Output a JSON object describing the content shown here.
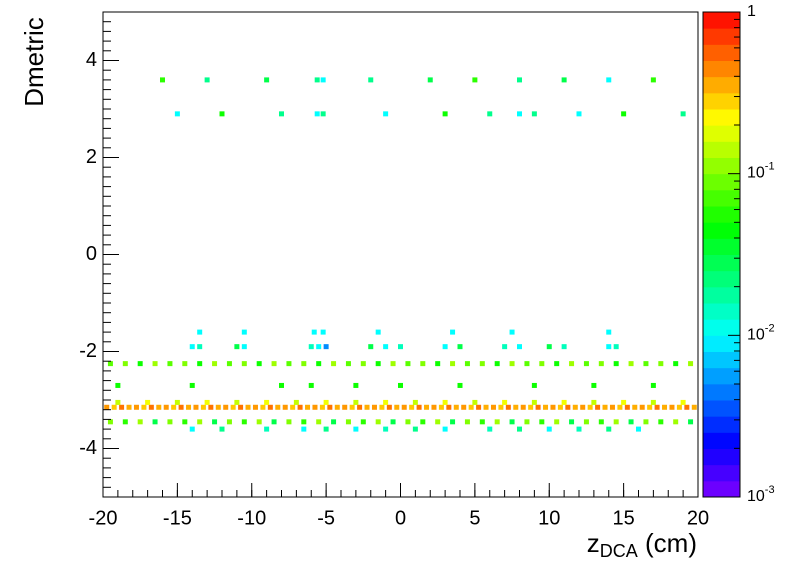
{
  "chart_data": {
    "type": "heatmap2d",
    "ylabel": "Dmetric",
    "xlabel": {
      "main": "z",
      "sub": "DCA",
      "rest": " (cm)"
    },
    "xlim": [
      -20,
      20
    ],
    "xticks": [
      -20,
      -15,
      -10,
      -5,
      0,
      5,
      10,
      15,
      20
    ],
    "ylim": [
      -5,
      5
    ],
    "yticks": [
      -4,
      -2,
      0,
      2,
      4
    ],
    "zlim": [
      0.001,
      1
    ],
    "zlog": true,
    "zticks": [
      1,
      {
        "value": 0.1,
        "label": "10",
        "sup": "-1"
      },
      {
        "value": 0.01,
        "label": "10",
        "sup": "-2"
      },
      {
        "value": 0.001,
        "label": "10",
        "sup": "-3"
      }
    ],
    "rows": [
      {
        "y": -3.15,
        "x": [
          -19.75,
          -19.25,
          -18.75,
          -18.25,
          -17.75,
          -17.25,
          -16.75,
          -16.25,
          -15.75,
          -15.25,
          -14.75,
          -14.25,
          -13.75,
          -13.25,
          -12.75,
          -12.25,
          -11.75,
          -11.25,
          -10.75,
          -10.25,
          -9.75,
          -9.25,
          -8.75,
          -8.25,
          -7.75,
          -7.25,
          -6.75,
          -6.25,
          -5.75,
          -5.25,
          -4.75,
          -4.25,
          -3.75,
          -3.25,
          -2.75,
          -2.25,
          -1.75,
          -1.25,
          -0.75,
          -0.25,
          0.25,
          0.75,
          1.25,
          1.75,
          2.25,
          2.75,
          3.25,
          3.75,
          4.25,
          4.75,
          5.25,
          5.75,
          6.25,
          6.75,
          7.25,
          7.75,
          8.25,
          8.75,
          9.25,
          9.75,
          10.25,
          10.75,
          11.25,
          11.75,
          12.25,
          12.75,
          13.25,
          13.75,
          14.25,
          14.75,
          15.25,
          15.75,
          16.25,
          16.75,
          17.25,
          17.75,
          18.25,
          18.75,
          19.25,
          19.75
        ],
        "values": [
          0.4,
          0.3,
          0.5,
          0.35,
          0.4,
          0.3,
          0.5,
          0.35,
          0.4,
          0.3,
          0.5,
          0.35,
          0.4,
          0.3,
          0.5,
          0.35,
          0.4,
          0.3,
          0.5,
          0.35,
          0.4,
          0.3,
          0.5,
          0.35,
          0.4,
          0.3,
          0.5,
          0.35,
          0.4,
          0.3,
          0.5,
          0.35,
          0.4,
          0.3,
          0.5,
          0.35,
          0.4,
          0.3,
          0.5,
          0.35,
          0.4,
          0.3,
          0.5,
          0.35,
          0.4,
          0.3,
          0.5,
          0.35,
          0.4,
          0.3,
          0.5,
          0.35,
          0.4,
          0.3,
          0.5,
          0.35,
          0.4,
          0.3,
          0.5,
          0.35,
          0.4,
          0.3,
          0.5,
          0.35,
          0.4,
          0.3,
          0.5,
          0.35,
          0.4,
          0.3,
          0.5,
          0.35,
          0.4,
          0.3,
          0.5,
          0.35,
          0.4,
          0.3,
          0.5,
          0.35
        ]
      },
      {
        "y": -3.45,
        "x": [
          -19.5,
          -18.5,
          -17.5,
          -16.5,
          -15.5,
          -14.5,
          -13.5,
          -12.5,
          -11.5,
          -10.5,
          -9.5,
          -8.5,
          -7.5,
          -6.5,
          -5.5,
          -4.5,
          -3.5,
          -2.5,
          -1.5,
          -0.5,
          0.5,
          1.5,
          2.5,
          3.5,
          4.5,
          5.5,
          6.5,
          7.5,
          8.5,
          9.5,
          10.5,
          11.5,
          12.5,
          13.5,
          14.5,
          15.5,
          16.5,
          17.5,
          18.5,
          19.5
        ],
        "values": [
          0.1,
          0.06,
          0.12,
          0.03,
          0.1,
          0.06,
          0.12,
          0.03,
          0.1,
          0.06,
          0.12,
          0.03,
          0.1,
          0.06,
          0.12,
          0.03,
          0.1,
          0.06,
          0.12,
          0.03,
          0.1,
          0.06,
          0.12,
          0.03,
          0.1,
          0.06,
          0.12,
          0.03,
          0.1,
          0.06,
          0.12,
          0.03,
          0.1,
          0.06,
          0.12,
          0.03,
          0.1,
          0.06,
          0.12,
          0.03
        ]
      },
      {
        "y": -2.25,
        "x": [
          -19.5,
          -18.5,
          -17.5,
          -16.5,
          -15.5,
          -14.5,
          -13.5,
          -12.5,
          -11.5,
          -10.5,
          -9.5,
          -8.5,
          -7.5,
          -6.5,
          -5.5,
          -4.5,
          -3.5,
          -2.5,
          -1.5,
          -0.5,
          0.5,
          1.5,
          2.5,
          3.5,
          4.5,
          5.5,
          6.5,
          7.5,
          8.5,
          9.5,
          10.5,
          11.5,
          12.5,
          13.5,
          14.5,
          15.5,
          16.5,
          17.5,
          18.5,
          19.5
        ],
        "values": [
          0.08,
          0.1,
          0.05,
          0.12,
          0.08,
          0.1,
          0.05,
          0.12,
          0.08,
          0.1,
          0.05,
          0.12,
          0.08,
          0.1,
          0.05,
          0.12,
          0.08,
          0.1,
          0.05,
          0.12,
          0.08,
          0.1,
          0.05,
          0.12,
          0.08,
          0.1,
          0.05,
          0.12,
          0.08,
          0.1,
          0.05,
          0.12,
          0.08,
          0.1,
          0.05,
          0.12,
          0.08,
          0.1,
          0.05,
          0.12
        ]
      },
      {
        "y": -3.05,
        "x": [
          -19,
          -17,
          -15,
          -13,
          -11,
          -9,
          -7,
          -5,
          -3,
          -1,
          1,
          3,
          5,
          7,
          9,
          11,
          13,
          15,
          17,
          19
        ],
        "values": [
          0.15,
          0.2,
          0.15,
          0.2,
          0.15,
          0.2,
          0.15,
          0.2,
          0.15,
          0.2,
          0.15,
          0.2,
          0.15,
          0.2,
          0.15,
          0.2,
          0.15,
          0.2,
          0.15,
          0.2
        ]
      },
      {
        "y": -3.6,
        "x": [
          -14,
          -12,
          -9,
          -6.5,
          -5,
          -3,
          -1,
          1,
          3,
          6,
          8,
          10,
          12,
          14,
          16
        ],
        "values": [
          0.01,
          0.02,
          0.015,
          0.01,
          0.02,
          0.01,
          0.015,
          0.02,
          0.01,
          0.015,
          0.02,
          0.01,
          0.015,
          0.02,
          0.01
        ]
      },
      {
        "y": -1.9,
        "x": [
          -14,
          -13.5,
          -11,
          -10.5,
          -6,
          -5.5,
          -5,
          -2,
          -1,
          0,
          3,
          4,
          7,
          8,
          10,
          11,
          14,
          14.5
        ],
        "values": [
          0.01,
          0.015,
          0.03,
          0.01,
          0.015,
          0.01,
          0.005,
          0.03,
          0.01,
          0.015,
          0.01,
          0.03,
          0.015,
          0.01,
          0.03,
          0.015,
          0.01,
          0.015
        ]
      },
      {
        "y": -1.6,
        "x": [
          -13.5,
          -10.5,
          -5.8,
          -5.2,
          -1.5,
          3.5,
          7.5,
          14
        ],
        "values": [
          0.01,
          0.01,
          0.01,
          0.01,
          0.01,
          0.01,
          0.01,
          0.01
        ]
      },
      {
        "y": -2.7,
        "x": [
          -19,
          -14,
          -8,
          -6,
          -3,
          0,
          4,
          9,
          13,
          17
        ],
        "values": [
          0.05,
          0.05,
          0.05,
          0.05,
          0.05,
          0.05,
          0.05,
          0.05,
          0.05,
          0.05
        ]
      },
      {
        "y": 2.9,
        "x": [
          -15,
          -12,
          -8,
          -5.6,
          -5.2,
          -1,
          3,
          6,
          8,
          9,
          12,
          15,
          19
        ],
        "values": [
          0.01,
          0.05,
          0.02,
          0.01,
          0.02,
          0.01,
          0.05,
          0.02,
          0.01,
          0.02,
          0.01,
          0.05,
          0.02
        ]
      },
      {
        "y": 3.6,
        "x": [
          -16,
          -13,
          -9,
          -5.6,
          -5.2,
          -2,
          2,
          5,
          8,
          11,
          14,
          17
        ],
        "values": [
          0.06,
          0.02,
          0.03,
          0.02,
          0.01,
          0.02,
          0.03,
          0.06,
          0.02,
          0.03,
          0.01,
          0.06
        ]
      }
    ]
  }
}
